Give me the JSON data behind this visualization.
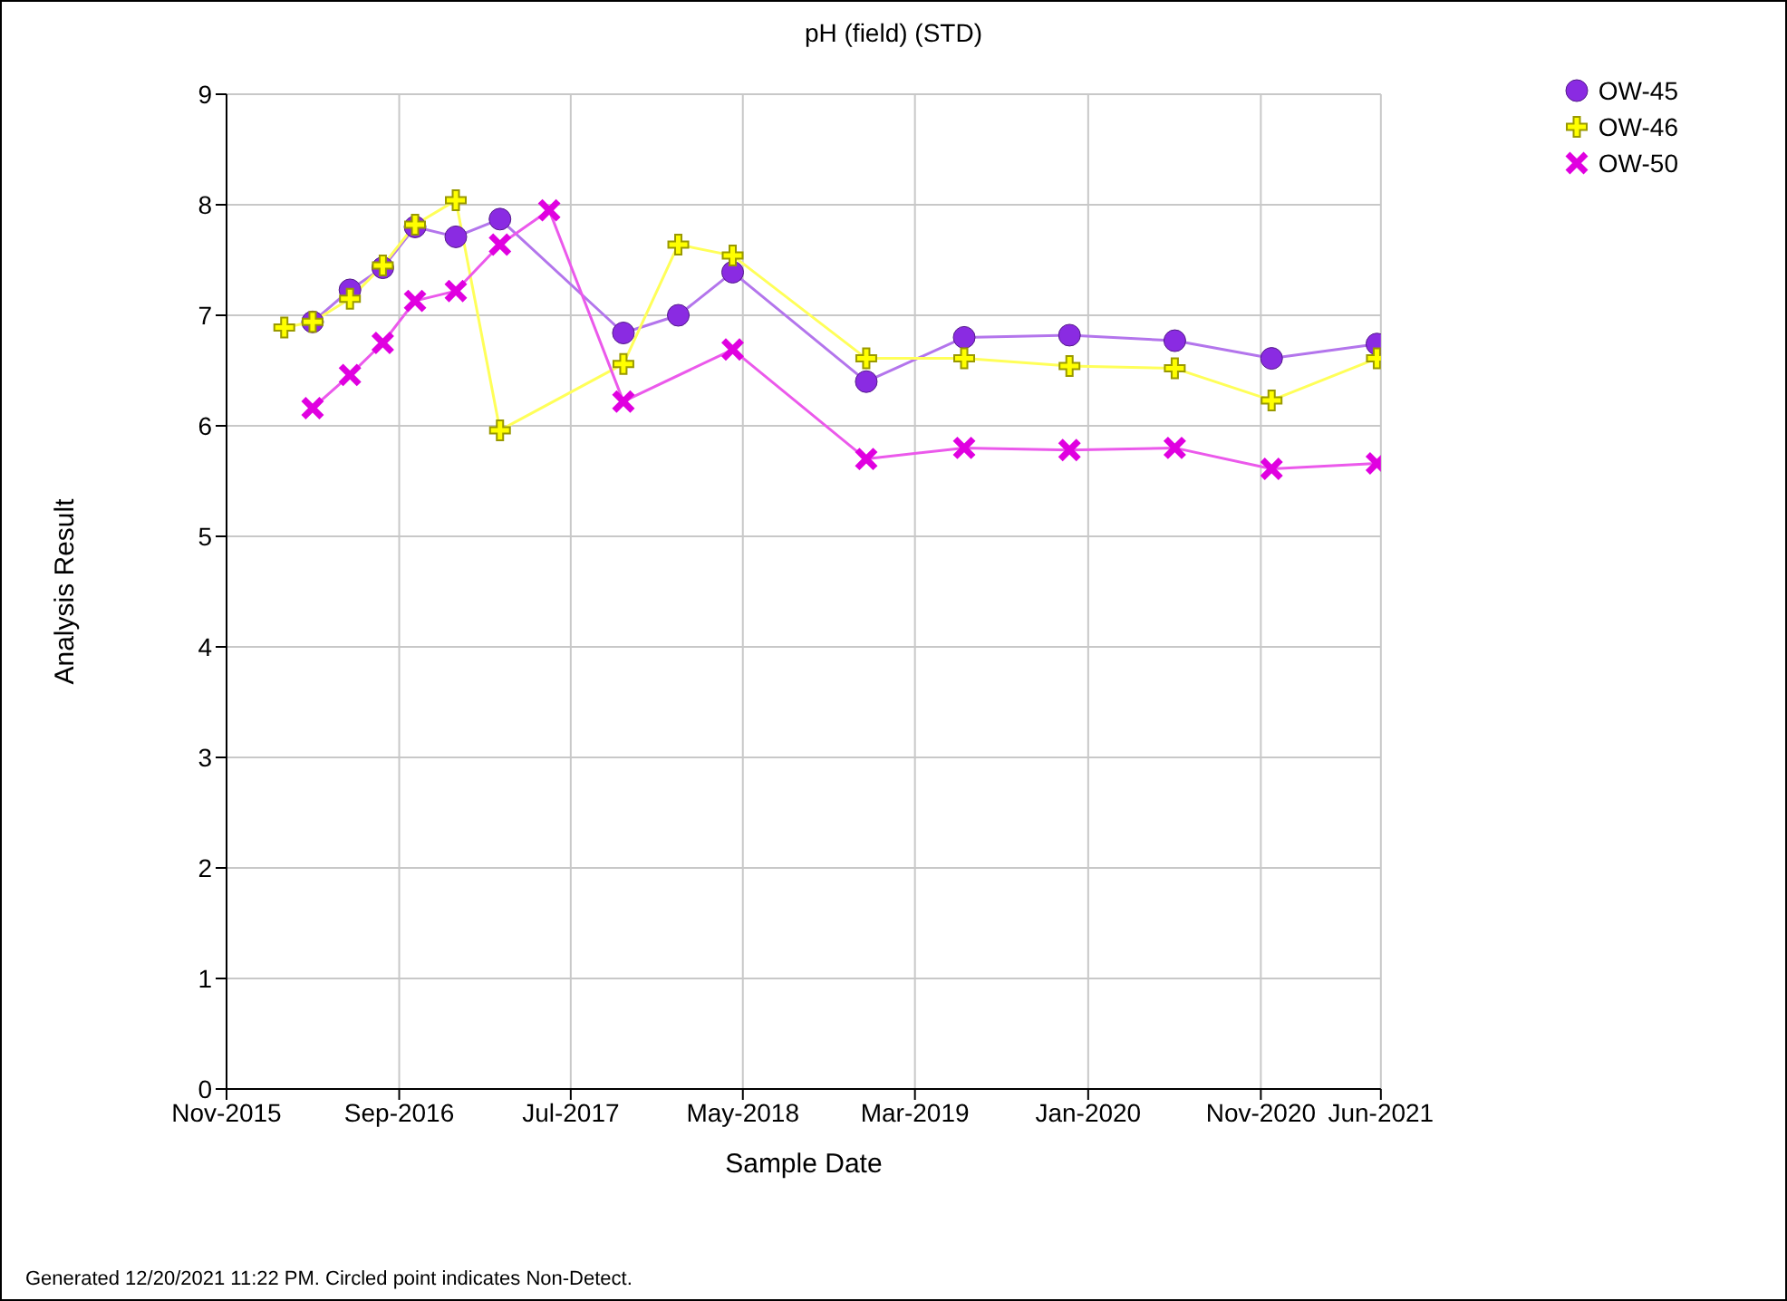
{
  "chart_data": {
    "type": "line",
    "title": "pH (field) (STD)",
    "xlabel": "Sample Date",
    "ylabel": "Analysis Result",
    "annotations": [
      "Generated 12/20/2021 11:22 PM. Circled point indicates Non-Detect."
    ],
    "series": [
      {
        "name": "OW-45",
        "color": "#8a2be2",
        "marker": "circle",
        "x": [
          "2016-04-01",
          "2016-06-06",
          "2016-08-03",
          "2016-09-29",
          "2016-12-10",
          "2017-02-26",
          "2017-10-02",
          "2018-01-07",
          "2018-04-13",
          "2018-12-05",
          "2019-05-27",
          "2019-11-29",
          "2020-06-02",
          "2020-11-20",
          "2021-05-25"
        ],
        "values": [
          6.94,
          7.23,
          7.43,
          7.8,
          7.71,
          7.87,
          6.84,
          7.0,
          7.39,
          6.4,
          6.8,
          6.82,
          6.77,
          6.61,
          6.74
        ]
      },
      {
        "name": "OW-46",
        "color": "#ffff00",
        "marker": "cross",
        "x": [
          "2016-02-11",
          "2016-04-01",
          "2016-06-06",
          "2016-08-03",
          "2016-09-29",
          "2016-12-10",
          "2017-02-26",
          "2017-10-02",
          "2018-01-07",
          "2018-04-13",
          "2018-12-05",
          "2019-05-27",
          "2019-11-29",
          "2020-06-02",
          "2020-11-20",
          "2021-05-25"
        ],
        "values": [
          6.89,
          6.94,
          7.15,
          7.45,
          7.82,
          8.04,
          5.96,
          6.56,
          7.64,
          7.54,
          6.61,
          6.61,
          6.54,
          6.52,
          6.23,
          6.61
        ]
      },
      {
        "name": "OW-50",
        "color": "#e000e0",
        "marker": "x",
        "x": [
          "2016-04-01",
          "2016-06-06",
          "2016-08-03",
          "2016-09-29",
          "2016-12-10",
          "2017-02-26",
          "2017-05-24",
          "2017-10-02",
          "2018-04-13",
          "2018-12-05",
          "2019-05-27",
          "2019-11-29",
          "2020-06-02",
          "2020-11-20",
          "2021-05-25"
        ],
        "values": [
          6.16,
          6.46,
          6.75,
          7.13,
          7.22,
          7.64,
          7.95,
          6.22,
          6.69,
          5.7,
          5.8,
          5.78,
          5.8,
          5.61,
          5.66
        ]
      }
    ],
    "xlim": [
      "2015-11-01",
      "2021-06-01"
    ],
    "xticks": [
      {
        "value": "2015-11-01",
        "label": "Nov-2015"
      },
      {
        "value": "2016-09-01",
        "label": "Sep-2016"
      },
      {
        "value": "2017-07-01",
        "label": "Jul-2017"
      },
      {
        "value": "2018-05-01",
        "label": "May-2018"
      },
      {
        "value": "2019-03-01",
        "label": "Mar-2019"
      },
      {
        "value": "2020-01-01",
        "label": "Jan-2020"
      },
      {
        "value": "2020-11-01",
        "label": "Nov-2020"
      },
      {
        "value": "2021-06-01",
        "label": "Jun-2021"
      }
    ],
    "ylim": [
      0,
      9
    ],
    "yticks": [
      0,
      1,
      2,
      3,
      4,
      5,
      6,
      7,
      8,
      9
    ],
    "grid": true,
    "legend": "top right",
    "line_style": "solid"
  }
}
